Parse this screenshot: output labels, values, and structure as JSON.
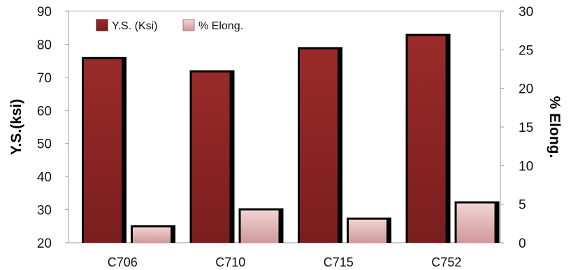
{
  "chart_data": {
    "type": "bar",
    "categories": [
      "C706",
      "C710",
      "C715",
      "C752"
    ],
    "series": [
      {
        "name": "Y.S. (Ksi)",
        "axis": "left",
        "values": [
          75.5,
          71.5,
          78.5,
          82.5
        ]
      },
      {
        "name": "% Elong.",
        "axis": "right",
        "values": [
          2.0,
          4.2,
          3.0,
          5.1
        ]
      }
    ],
    "ylabel": "Y.S.(ksi)",
    "y2label": "% Elong.",
    "ylim": [
      20,
      90
    ],
    "y2lim": [
      0,
      30
    ],
    "yticks": [
      20,
      30,
      40,
      50,
      60,
      70,
      80,
      90
    ],
    "y2ticks": [
      0,
      5,
      10,
      15,
      20,
      25,
      30
    ],
    "legend_position": "top-left",
    "grid": false,
    "colors": {
      "ys": "#8e2424",
      "elong": "#e6bcbc",
      "shadow": "#000000"
    }
  }
}
